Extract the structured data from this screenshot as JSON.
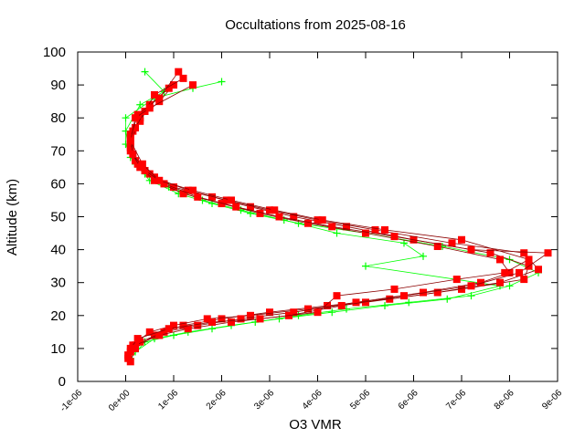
{
  "colors": {
    "background": "#ffffff",
    "axes": "#000000",
    "series_red": "#ff0000",
    "series_red_line": "#8b0000",
    "series_green": "#00ff00"
  },
  "chart_data": {
    "type": "scatter",
    "title": "Occultations from 2025-08-16",
    "xlabel": "O3 VMR",
    "ylabel": "Altitude (km)",
    "xlim": [
      -1e-06,
      9e-06
    ],
    "ylim": [
      0,
      100
    ],
    "xticks": [
      "-1e-06",
      "0e+00",
      "1e-06",
      "2e-06",
      "3e-06",
      "4e-06",
      "5e-06",
      "6e-06",
      "7e-06",
      "8e-06",
      "9e-06"
    ],
    "xtick_values": [
      -1e-06,
      0,
      1e-06,
      2e-06,
      3e-06,
      4e-06,
      5e-06,
      6e-06,
      7e-06,
      8e-06,
      9e-06
    ],
    "yticks": [
      "0",
      "10",
      "20",
      "30",
      "40",
      "50",
      "60",
      "70",
      "80",
      "90",
      "100"
    ],
    "ytick_values": [
      0,
      10,
      20,
      30,
      40,
      50,
      60,
      70,
      80,
      90,
      100
    ],
    "grid": false,
    "legend": "none",
    "series": [
      {
        "marker": "square",
        "color": "red",
        "profiles": [
          {
            "x": [
              1e-07,
              2e-07,
              6e-07,
              1.2e-06,
              2e-06,
              3e-06,
              4.2e-06,
              5.5e-06,
              7e-06,
              8.3e-06,
              8.4e-06,
              7.6e-06,
              6e-06,
              4.6e-06,
              3.5e-06,
              2.6e-06,
              1.8e-06,
              1e-06,
              5e-07,
              2e-07,
              1e-07,
              1.5e-07,
              3e-07,
              7e-07,
              1e-06
            ],
            "y": [
              6,
              10,
              14,
              17,
              19,
              21,
              23,
              25,
              28,
              31,
              35,
              39,
              43,
              47,
              50,
              53,
              56,
              59,
              63,
              67,
              72,
              76,
              80,
              85,
              90
            ]
          },
          {
            "x": [
              5e-08,
              1.5e-07,
              5e-07,
              1e-06,
              1.7e-06,
              2.6e-06,
              3.8e-06,
              5e-06,
              6.5e-06,
              7.8e-06,
              8.6e-06,
              8.3e-06,
              6.8e-06,
              5.2e-06,
              4e-06,
              3e-06,
              2.1e-06,
              1.3e-06,
              6e-07,
              2.5e-07,
              1e-07,
              1e-07,
              3e-07,
              5e-07,
              9e-07
            ],
            "y": [
              7,
              11,
              15,
              17,
              19,
              20,
              22,
              24,
              27,
              30,
              34,
              39,
              42,
              46,
              49,
              52,
              55,
              58,
              62,
              66,
              71,
              75,
              79,
              84,
              89
            ]
          },
          {
            "x": [
              1e-07,
              3e-07,
              8e-07,
              1.5e-06,
              2.4e-06,
              3.5e-06,
              4.8e-06,
              6.2e-06,
              7.4e-06,
              8e-06,
              7.8e-06,
              6.5e-06,
              5e-06,
              3.8e-06,
              2.8e-06,
              2e-06,
              1.2e-06,
              6e-07,
              3e-07,
              1e-07,
              2e-07,
              4e-07,
              6e-07,
              1.2e-06
            ],
            "y": [
              9,
              12,
              15,
              17,
              19,
              21,
              24,
              27,
              30,
              33,
              37,
              41,
              45,
              48,
              51,
              54,
              57,
              61,
              65,
              70,
              77,
              82,
              87,
              92
            ]
          },
          {
            "x": [
              5e-08,
              2e-07,
              7e-07,
              1.3e-06,
              2.2e-06,
              3.4e-06,
              4.5e-06,
              5.8e-06,
              7.2e-06,
              8.2e-06,
              8.8e-06,
              7.2e-06,
              5.6e-06,
              4.3e-06,
              3.2e-06,
              2.3e-06,
              1.5e-06,
              8e-07,
              4e-07,
              1.5e-07,
              1e-07,
              2.5e-07,
              7e-07,
              1.1e-06
            ],
            "y": [
              8,
              11,
              14,
              16,
              18,
              20,
              23,
              26,
              29,
              33,
              39,
              40,
              44,
              47,
              50,
              53,
              56,
              60,
              64,
              69,
              74,
              81,
              86,
              94
            ]
          },
          {
            "x": [
              1e-07,
              2.5e-07,
              9e-07,
              1.8e-06,
              2.8e-06,
              4e-06,
              4.4e-06,
              5.6e-06,
              6.9e-06,
              7.9e-06,
              8.4e-06,
              7e-06,
              5.4e-06,
              4.1e-06,
              3.1e-06,
              2.2e-06,
              1.4e-06,
              7e-07,
              3.5e-07,
              1e-07,
              2e-07,
              5e-07,
              1.4e-06
            ],
            "y": [
              10,
              13,
              16,
              18,
              19,
              21,
              26,
              28,
              31,
              33,
              37,
              43,
              46,
              49,
              52,
              55,
              58,
              61,
              66,
              73,
              80,
              83,
              90
            ]
          }
        ]
      },
      {
        "marker": "plus",
        "color": "green",
        "profiles": [
          {
            "x": [
              1e-07,
              4e-07,
              1e-06,
              1.8e-06,
              2.7e-06,
              3.6e-06,
              4.6e-06,
              5.9e-06,
              7.2e-06,
              8e-06,
              8.6e-06,
              8e-06,
              6.6e-06,
              5e-06,
              3.6e-06,
              2.6e-06,
              1.8e-06,
              1.1e-06,
              5e-07,
              2e-07,
              0.0,
              0.0,
              6e-07,
              1.4e-06,
              2e-06
            ],
            "y": [
              7,
              12,
              14,
              16,
              18,
              20,
              22,
              24,
              26,
              29,
              33,
              37,
              41,
              45,
              48,
              51,
              54,
              57,
              61,
              66,
              72,
              80,
              86,
              89,
              91
            ]
          },
          {
            "x": [
              2e-07,
              6e-07,
              1.3e-06,
              2.2e-06,
              3.2e-06,
              4.3e-06,
              5.4e-06,
              6.7e-06,
              7.8e-06,
              5e-06,
              6.2e-06,
              5.8e-06,
              4.4e-06,
              3.3e-06,
              2.4e-06,
              1.6e-06,
              9e-07,
              4e-07,
              1e-07,
              0.0,
              3e-07,
              8e-07,
              4e-07
            ],
            "y": [
              9,
              13,
              15,
              17,
              19,
              21,
              23,
              25,
              29,
              35,
              38,
              42,
              45,
              49,
              52,
              55,
              59,
              63,
              68,
              76,
              84,
              88,
              94
            ]
          }
        ]
      }
    ]
  }
}
